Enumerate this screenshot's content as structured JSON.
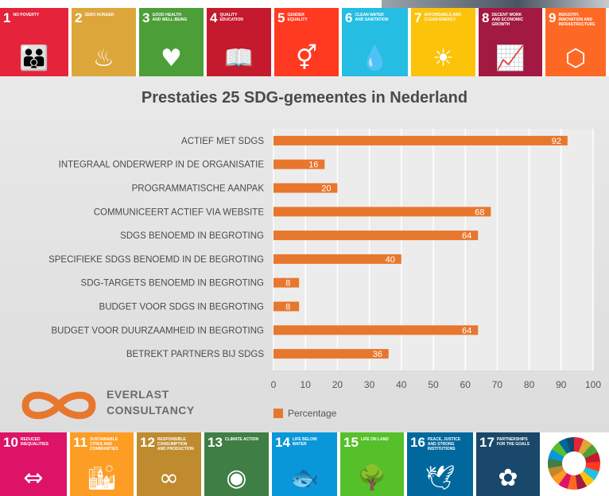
{
  "sdg_top": [
    {
      "num": "1",
      "title": "No poverty",
      "icon": "family-icon",
      "glyph": "👪",
      "color": "#e5243b"
    },
    {
      "num": "2",
      "title": "Zero hunger",
      "icon": "bowl-icon",
      "glyph": "♨",
      "color": "#dda63a"
    },
    {
      "num": "3",
      "title": "Good health and well-being",
      "icon": "heartbeat-icon",
      "glyph": "♥",
      "color": "#4c9f38"
    },
    {
      "num": "4",
      "title": "Quality education",
      "icon": "book-icon",
      "glyph": "📖",
      "color": "#c5192d"
    },
    {
      "num": "5",
      "title": "Gender equality",
      "icon": "gender-icon",
      "glyph": "⚥",
      "color": "#ff3a21"
    },
    {
      "num": "6",
      "title": "Clean water and sanitation",
      "icon": "water-drop-icon",
      "glyph": "💧",
      "color": "#26bde2"
    },
    {
      "num": "7",
      "title": "Affordable and clean energy",
      "icon": "sun-icon",
      "glyph": "☀",
      "color": "#fcc30b"
    },
    {
      "num": "8",
      "title": "Decent work and economic growth",
      "icon": "growth-chart-icon",
      "glyph": "📈",
      "color": "#a21942"
    },
    {
      "num": "9",
      "title": "Industry, innovation and infrastructure",
      "icon": "cubes-icon",
      "glyph": "⬡",
      "color": "#fd6925"
    }
  ],
  "sdg_bottom": [
    {
      "num": "10",
      "title": "Reduced inequalities",
      "icon": "equality-icon",
      "glyph": "⇔",
      "color": "#dd1367"
    },
    {
      "num": "11",
      "title": "Sustainable cities and communities",
      "icon": "city-icon",
      "glyph": "🏙",
      "color": "#fd9d24"
    },
    {
      "num": "12",
      "title": "Responsible consumption and production",
      "icon": "infinity-icon",
      "glyph": "∞",
      "color": "#bf8b2e"
    },
    {
      "num": "13",
      "title": "Climate action",
      "icon": "eye-globe-icon",
      "glyph": "◉",
      "color": "#3f7e44"
    },
    {
      "num": "14",
      "title": "Life below water",
      "icon": "fish-icon",
      "glyph": "🐟",
      "color": "#0a97d9"
    },
    {
      "num": "15",
      "title": "Life on land",
      "icon": "tree-icon",
      "glyph": "🌳",
      "color": "#56c02b"
    },
    {
      "num": "16",
      "title": "Peace, justice and strong institutions",
      "icon": "dove-icon",
      "glyph": "🕊",
      "color": "#00689d"
    },
    {
      "num": "17",
      "title": "Partnerships for the goals",
      "icon": "flower-icon",
      "glyph": "✿",
      "color": "#19486a"
    }
  ],
  "brand": {
    "line1": "EVERLAST",
    "line2": "CONSULTANCY",
    "color": "#e8772e"
  },
  "chart_data": {
    "type": "bar",
    "orientation": "horizontal",
    "title": "Prestaties 25 SDG-gemeentes in Nederland",
    "xlabel": "",
    "ylabel": "",
    "xlim": [
      0,
      100
    ],
    "x_ticks": [
      0,
      10,
      20,
      30,
      40,
      50,
      60,
      70,
      80,
      90,
      100
    ],
    "grid": true,
    "legend_position": "bottom",
    "bar_color": "#e8772e",
    "categories": [
      "ACTIEF MET SDGS",
      "INTEGRAAL ONDERWERP IN DE ORGANISATIE",
      "PROGRAMMATISCHE AANPAK",
      "COMMUNICEERT ACTIEF VIA WEBSITE",
      "SDGS BENOEMD IN BEGROTING",
      "SPECIFIEKE SDGS BENOEMD IN DE BEGROTING",
      "SDG-TARGETS BENOEMD IN BEGROTING",
      "BUDGET VOOR SDGS IN BEGROTING",
      "BUDGET VOOR DUURZAAMHEID IN BEGROTING",
      "BETREKT PARTNERS BIJ SDGS"
    ],
    "series": [
      {
        "name": "Percentage",
        "values": [
          92,
          16,
          20,
          68,
          64,
          40,
          8,
          8,
          64,
          36
        ]
      }
    ]
  }
}
